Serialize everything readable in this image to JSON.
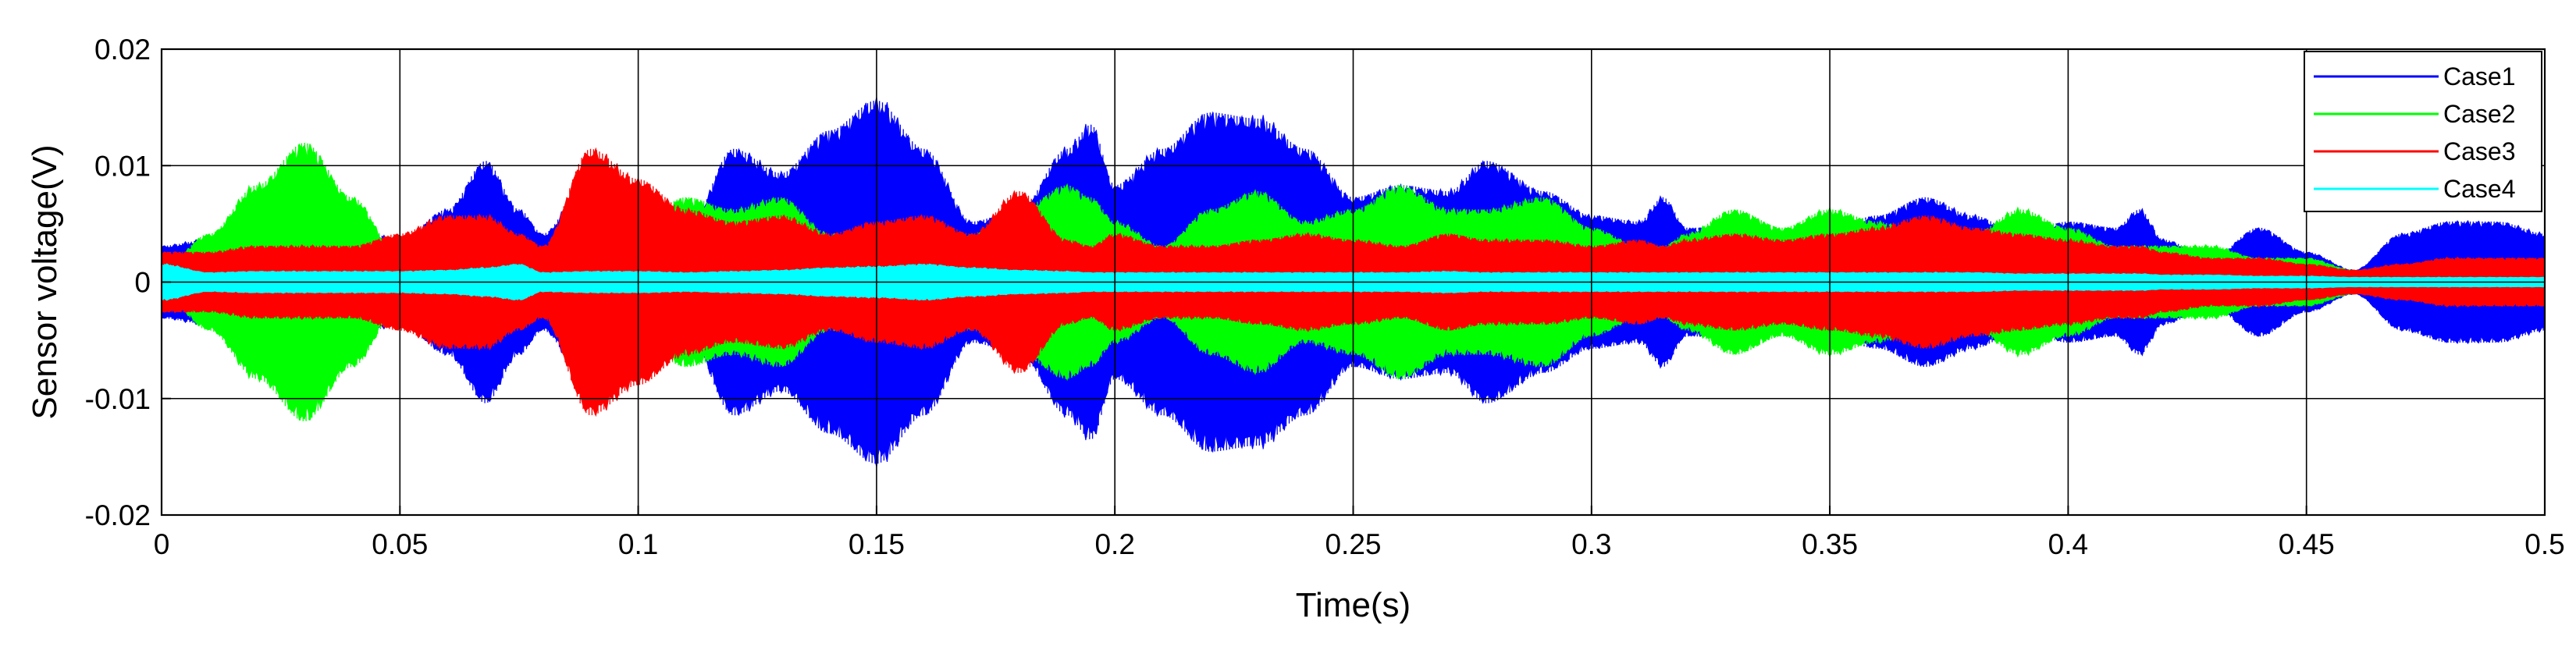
{
  "chart_data": {
    "type": "area",
    "title": "",
    "xlabel": "Time(s)",
    "ylabel": "Sensor voltage(V)",
    "xlim": [
      0,
      0.5
    ],
    "ylim": [
      -0.02,
      0.02
    ],
    "grid": true,
    "legend_position": "top-right",
    "x_ticks": [
      0,
      0.05,
      0.1,
      0.15,
      0.2,
      0.25,
      0.3,
      0.35,
      0.4,
      0.45,
      0.5
    ],
    "x_tick_labels": [
      "0",
      "0.05",
      "0.1",
      "0.15",
      "0.2",
      "0.25",
      "0.3",
      "0.35",
      "0.4",
      "0.45",
      "0.5"
    ],
    "y_ticks": [
      0.02,
      0.01,
      0,
      -0.01,
      -0.02
    ],
    "y_tick_labels": [
      "0.02",
      "0.01",
      "0",
      "-0.01",
      "-0.02"
    ],
    "x": [
      0,
      0.01,
      0.02,
      0.03,
      0.04,
      0.05,
      0.06,
      0.068,
      0.075,
      0.08,
      0.09,
      0.1,
      0.11,
      0.12,
      0.13,
      0.14,
      0.15,
      0.16,
      0.17,
      0.18,
      0.19,
      0.195,
      0.2,
      0.21,
      0.22,
      0.23,
      0.24,
      0.25,
      0.26,
      0.27,
      0.278,
      0.29,
      0.3,
      0.31,
      0.315,
      0.32,
      0.33,
      0.34,
      0.35,
      0.36,
      0.37,
      0.38,
      0.39,
      0.4,
      0.41,
      0.415,
      0.42,
      0.43,
      0.44,
      0.45,
      0.46,
      0.47,
      0.48,
      0.49,
      0.5
    ],
    "series": [
      {
        "name": "Case1",
        "color": "#0000FF",
        "amplitude": [
          0.003,
          0.0035,
          0.004,
          0.005,
          0.0045,
          0.0035,
          0.006,
          0.01,
          0.006,
          0.004,
          0.009,
          0.007,
          0.004,
          0.011,
          0.009,
          0.0125,
          0.015,
          0.011,
          0.005,
          0.006,
          0.011,
          0.013,
          0.008,
          0.011,
          0.014,
          0.0135,
          0.011,
          0.007,
          0.008,
          0.0075,
          0.01,
          0.0075,
          0.0055,
          0.005,
          0.007,
          0.0045,
          0.0045,
          0.004,
          0.0045,
          0.0055,
          0.007,
          0.0055,
          0.004,
          0.005,
          0.0045,
          0.006,
          0.0035,
          0.002,
          0.0045,
          0.0025,
          0.001,
          0.004,
          0.005,
          0.005,
          0.004
        ]
      },
      {
        "name": "Case2",
        "color": "#00FF00",
        "amplitude": [
          0.001,
          0.004,
          0.008,
          0.0115,
          0.007,
          0.002,
          0.002,
          0.002,
          0.002,
          0.002,
          0.0025,
          0.005,
          0.007,
          0.006,
          0.007,
          0.004,
          0.003,
          0.003,
          0.004,
          0.006,
          0.008,
          0.007,
          0.005,
          0.003,
          0.006,
          0.0075,
          0.005,
          0.006,
          0.008,
          0.006,
          0.006,
          0.007,
          0.0045,
          0.003,
          0.003,
          0.004,
          0.006,
          0.0045,
          0.006,
          0.005,
          0.0035,
          0.004,
          0.006,
          0.0045,
          0.003,
          0.003,
          0.003,
          0.003,
          0.002,
          0.002,
          0.001,
          0.001,
          0.0015,
          0.001,
          0.001
        ]
      },
      {
        "name": "Case3",
        "color": "#FF0000",
        "amplitude": [
          0.0025,
          0.0025,
          0.003,
          0.003,
          0.003,
          0.004,
          0.0055,
          0.0055,
          0.004,
          0.003,
          0.011,
          0.0085,
          0.006,
          0.005,
          0.0055,
          0.004,
          0.005,
          0.0055,
          0.004,
          0.0075,
          0.0035,
          0.003,
          0.004,
          0.003,
          0.003,
          0.0035,
          0.004,
          0.0035,
          0.003,
          0.004,
          0.0035,
          0.0035,
          0.003,
          0.0035,
          0.003,
          0.0035,
          0.004,
          0.0035,
          0.004,
          0.0045,
          0.0055,
          0.0045,
          0.004,
          0.0035,
          0.003,
          0.003,
          0.0025,
          0.002,
          0.002,
          0.0015,
          0.001,
          0.0015,
          0.002,
          0.002,
          0.002
        ]
      },
      {
        "name": "Case4",
        "color": "#00FFFF",
        "amplitude": [
          0.0015,
          0.0008,
          0.0009,
          0.0009,
          0.0009,
          0.0009,
          0.001,
          0.0012,
          0.0015,
          0.0008,
          0.0009,
          0.0009,
          0.0008,
          0.0009,
          0.001,
          0.0012,
          0.0013,
          0.0015,
          0.0012,
          0.001,
          0.0009,
          0.0008,
          0.0008,
          0.0008,
          0.0008,
          0.0008,
          0.0008,
          0.0008,
          0.0008,
          0.0009,
          0.0008,
          0.0008,
          0.0008,
          0.0008,
          0.0008,
          0.0008,
          0.0008,
          0.0008,
          0.0008,
          0.0008,
          0.0008,
          0.0008,
          0.0007,
          0.0007,
          0.0007,
          0.0007,
          0.0006,
          0.0006,
          0.0005,
          0.0005,
          0.0004,
          0.0004,
          0.0004,
          0.0004,
          0.0004
        ]
      }
    ]
  }
}
